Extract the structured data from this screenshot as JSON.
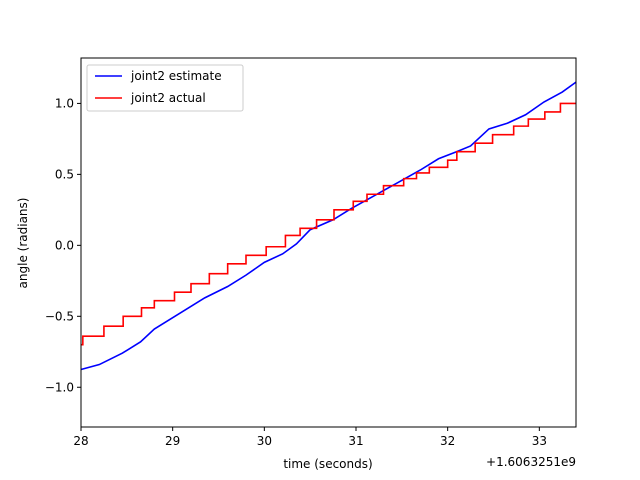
{
  "chart_data": {
    "type": "line",
    "xlabel": "time (seconds)",
    "ylabel": "angle (radians)",
    "x_offset_label": "+1.6063251e9",
    "xlim": [
      28.0,
      33.4
    ],
    "ylim": [
      -1.28,
      1.32
    ],
    "x_ticks": [
      {
        "value": 28,
        "label": "28"
      },
      {
        "value": 29,
        "label": "29"
      },
      {
        "value": 30,
        "label": "30"
      },
      {
        "value": 31,
        "label": "31"
      },
      {
        "value": 32,
        "label": "32"
      },
      {
        "value": 33,
        "label": "33"
      }
    ],
    "y_ticks": [
      {
        "value": -1.0,
        "label": "−1.0"
      },
      {
        "value": -0.5,
        "label": "−0.5"
      },
      {
        "value": 0.0,
        "label": "0.0"
      },
      {
        "value": 0.5,
        "label": "0.5"
      },
      {
        "value": 1.0,
        "label": "1.0"
      }
    ],
    "grid": false,
    "legend_position": "upper-left",
    "series": [
      {
        "name": "joint2 estimate",
        "color": "#0000ff",
        "step": false,
        "x": [
          28.0,
          28.2,
          28.45,
          28.65,
          28.8,
          29.0,
          29.15,
          29.35,
          29.6,
          29.8,
          30.0,
          30.2,
          30.35,
          30.5,
          30.75,
          30.95,
          31.2,
          31.45,
          31.7,
          31.9,
          32.1,
          32.25,
          32.45,
          32.65,
          32.85,
          33.05,
          33.25,
          33.4
        ],
        "y": [
          -0.875,
          -0.84,
          -0.76,
          -0.68,
          -0.59,
          -0.51,
          -0.45,
          -0.37,
          -0.29,
          -0.21,
          -0.12,
          -0.06,
          0.01,
          0.11,
          0.18,
          0.26,
          0.35,
          0.44,
          0.53,
          0.61,
          0.66,
          0.7,
          0.82,
          0.86,
          0.92,
          1.01,
          1.08,
          1.15
        ]
      },
      {
        "name": "joint2 actual",
        "color": "#ff0000",
        "step": true,
        "x": [
          28.0,
          28.02,
          28.25,
          28.46,
          28.66,
          28.8,
          29.02,
          29.2,
          29.4,
          29.6,
          29.8,
          30.02,
          30.23,
          30.39,
          30.57,
          30.76,
          30.97,
          31.12,
          31.3,
          31.52,
          31.66,
          31.8,
          32.0,
          32.1,
          32.3,
          32.49,
          32.72,
          32.88,
          33.06,
          33.23,
          33.4
        ],
        "y": [
          -0.7,
          -0.64,
          -0.57,
          -0.5,
          -0.44,
          -0.39,
          -0.33,
          -0.27,
          -0.2,
          -0.13,
          -0.07,
          -0.01,
          0.07,
          0.12,
          0.18,
          0.25,
          0.31,
          0.36,
          0.42,
          0.47,
          0.51,
          0.55,
          0.6,
          0.66,
          0.72,
          0.78,
          0.84,
          0.89,
          0.94,
          1.0,
          1.0
        ]
      }
    ]
  }
}
